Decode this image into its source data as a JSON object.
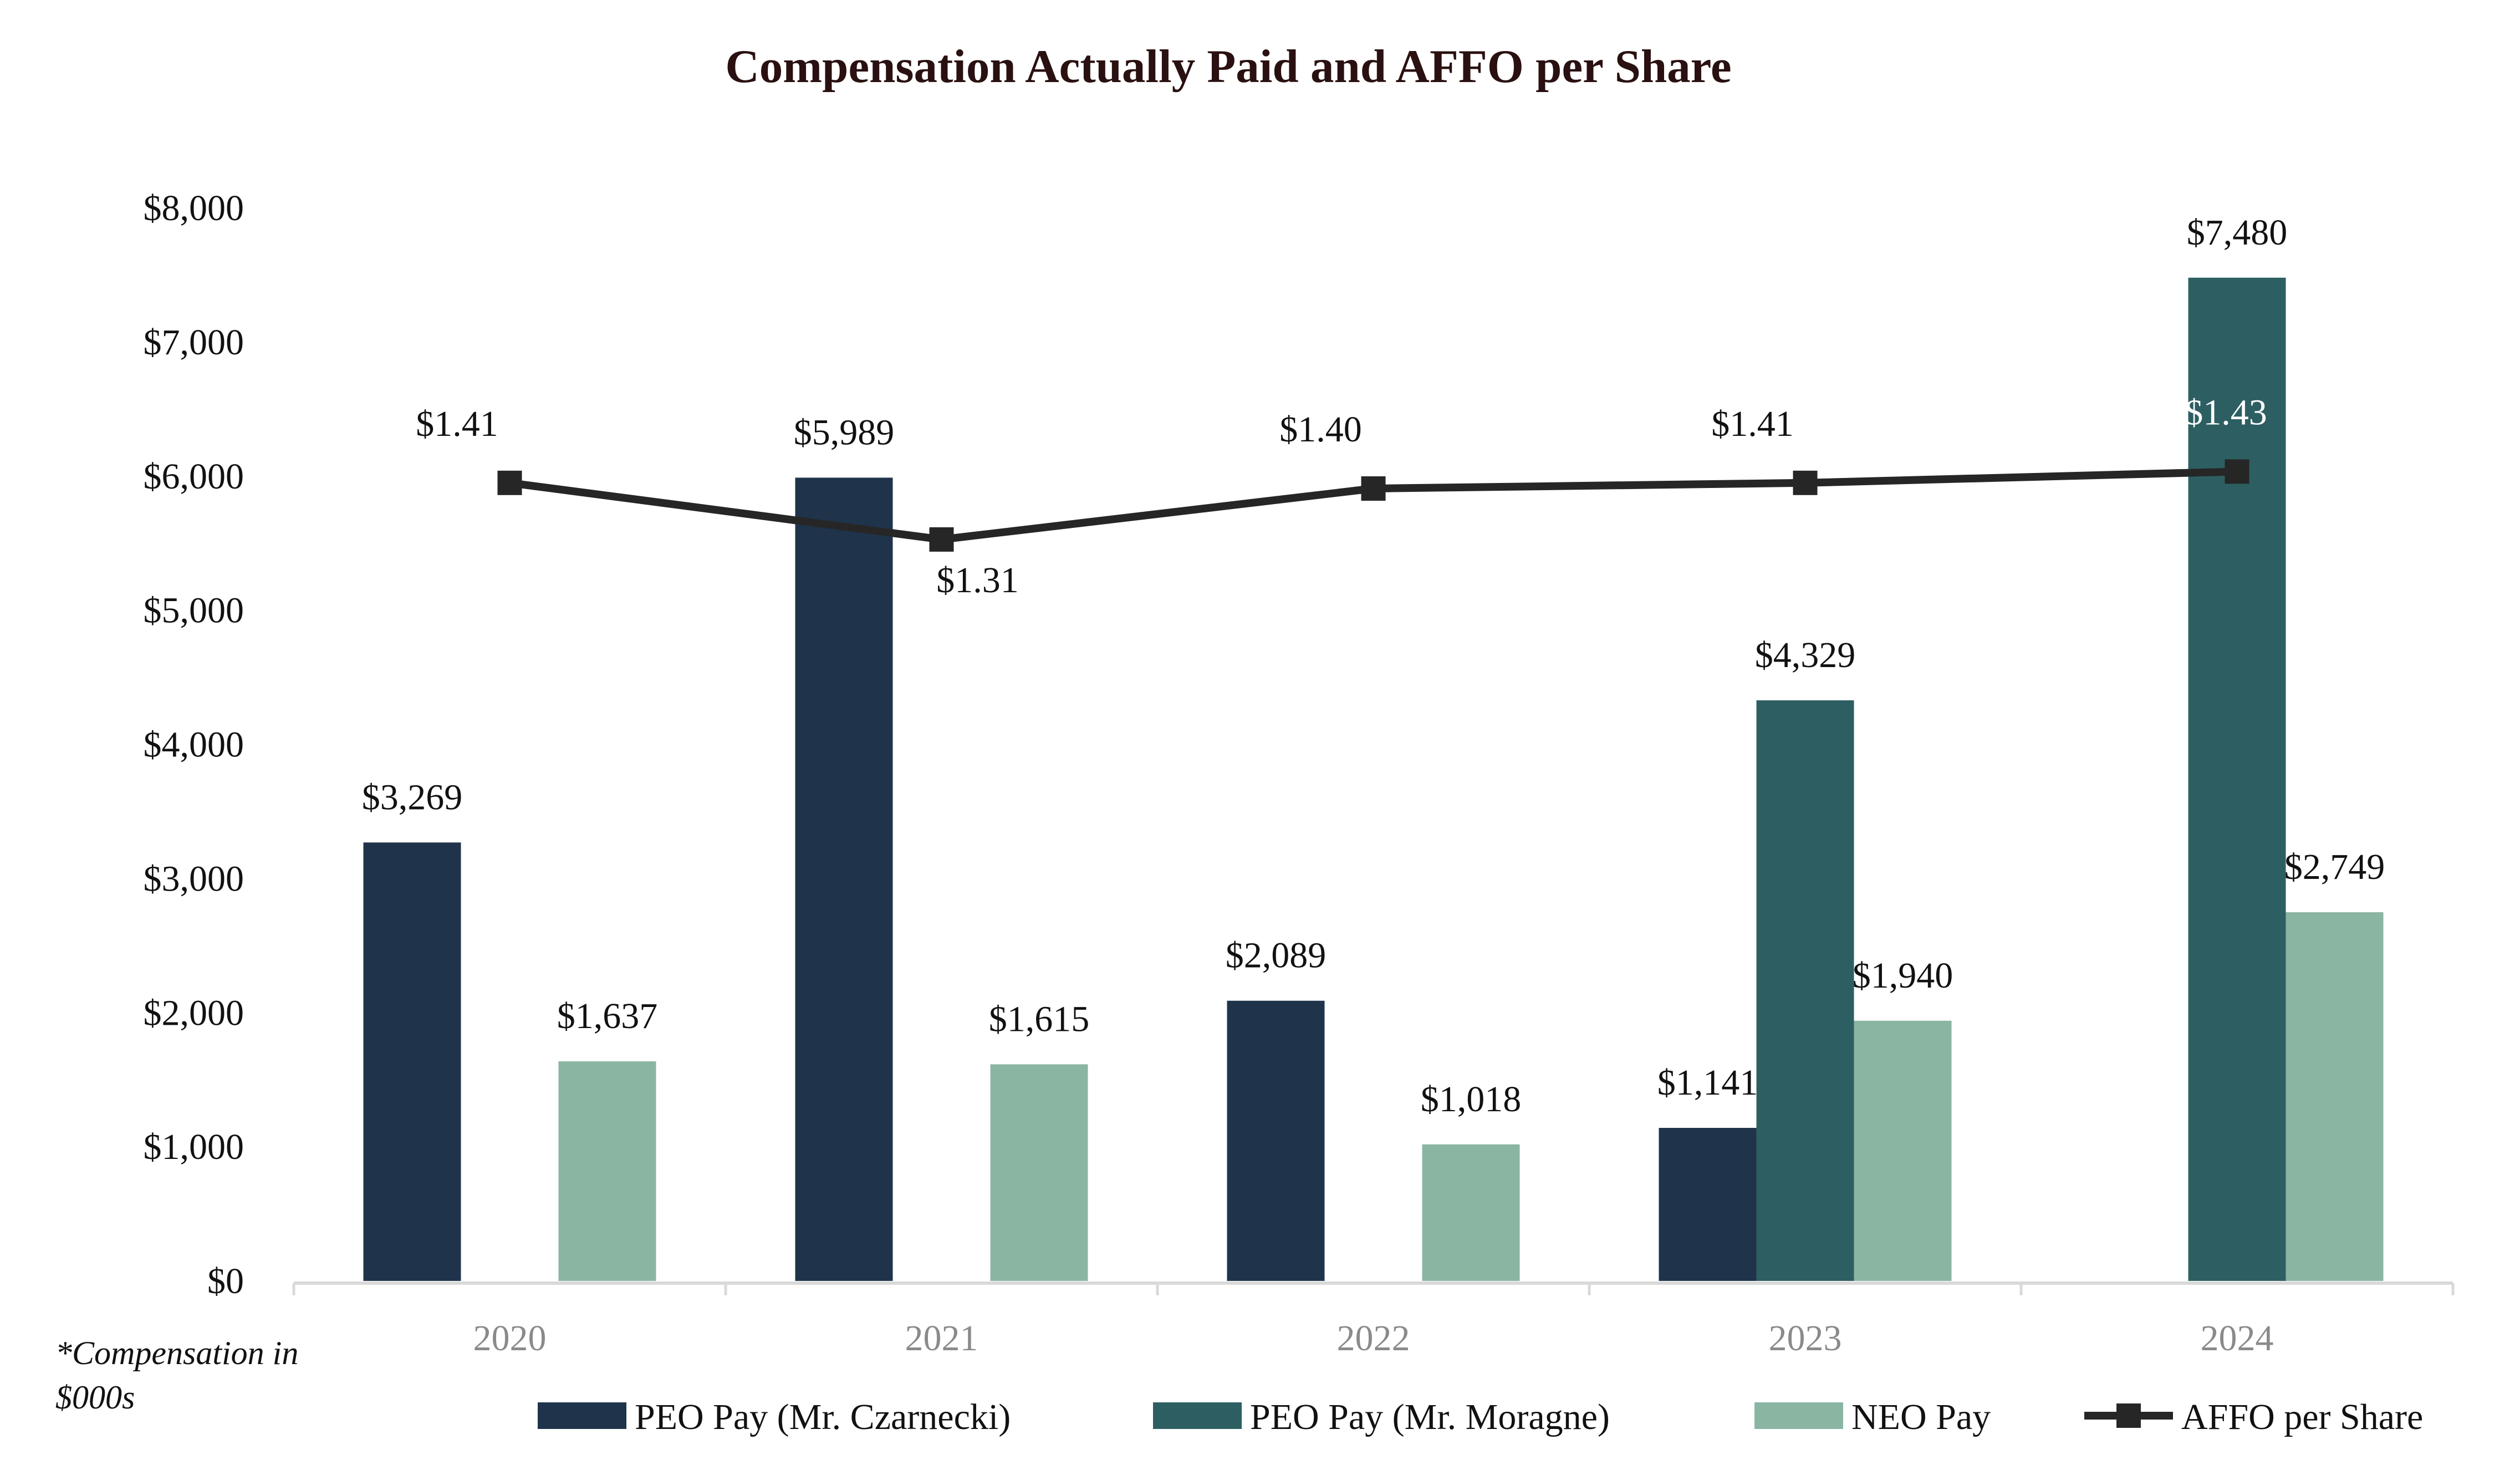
{
  "chart_data": {
    "type": "bar",
    "title": "Compensation Actually Paid and AFFO per Share",
    "categories": [
      "2020",
      "2021",
      "2022",
      "2023",
      "2024"
    ],
    "ylim": [
      0,
      8000
    ],
    "yticks": [
      0,
      1000,
      2000,
      3000,
      4000,
      5000,
      6000,
      7000,
      8000
    ],
    "ytick_labels": [
      "$0",
      "$1,000",
      "$2,000",
      "$3,000",
      "$4,000",
      "$5,000",
      "$6,000",
      "$7,000",
      "$8,000"
    ],
    "xlabel": "",
    "ylabel": "",
    "series": [
      {
        "name": "PEO Pay (Mr. Czarnecki)",
        "color": "#1f344b",
        "values": [
          3269,
          5989,
          2089,
          1141,
          null
        ],
        "labels": [
          "$3,269",
          "$5,989",
          "$2,089",
          "$1,141",
          null
        ]
      },
      {
        "name": "PEO Pay (Mr. Moragne)",
        "color": "#2d5f62",
        "values": [
          null,
          null,
          null,
          4329,
          7480
        ],
        "labels": [
          null,
          null,
          null,
          "$4,329",
          "$7,480"
        ]
      },
      {
        "name": "NEO Pay",
        "color": "#8bb5a3",
        "values": [
          1637,
          1615,
          1018,
          1940,
          2749
        ],
        "labels": [
          "$1,637",
          "$1,615",
          "$1,018",
          "$1,940",
          "$2,749"
        ]
      }
    ],
    "line_series": {
      "name": "AFFO per Share",
      "color": "#262626",
      "values": [
        1.41,
        1.31,
        1.4,
        1.41,
        1.43
      ],
      "labels": [
        "$1.41",
        "$1.31",
        "$1.40",
        "$1.41",
        "$1.43"
      ],
      "label_colors": [
        "#111111",
        "#111111",
        "#111111",
        "#111111",
        "#ffffff"
      ]
    },
    "legend": [
      "PEO Pay (Mr. Czarnecki)",
      "PEO Pay (Mr. Moragne)",
      "NEO Pay",
      "AFFO per Share"
    ],
    "legend_position": "bottom",
    "grid": false
  },
  "footnote": {
    "line1": "*Compensation in",
    "line2": "$000s"
  }
}
